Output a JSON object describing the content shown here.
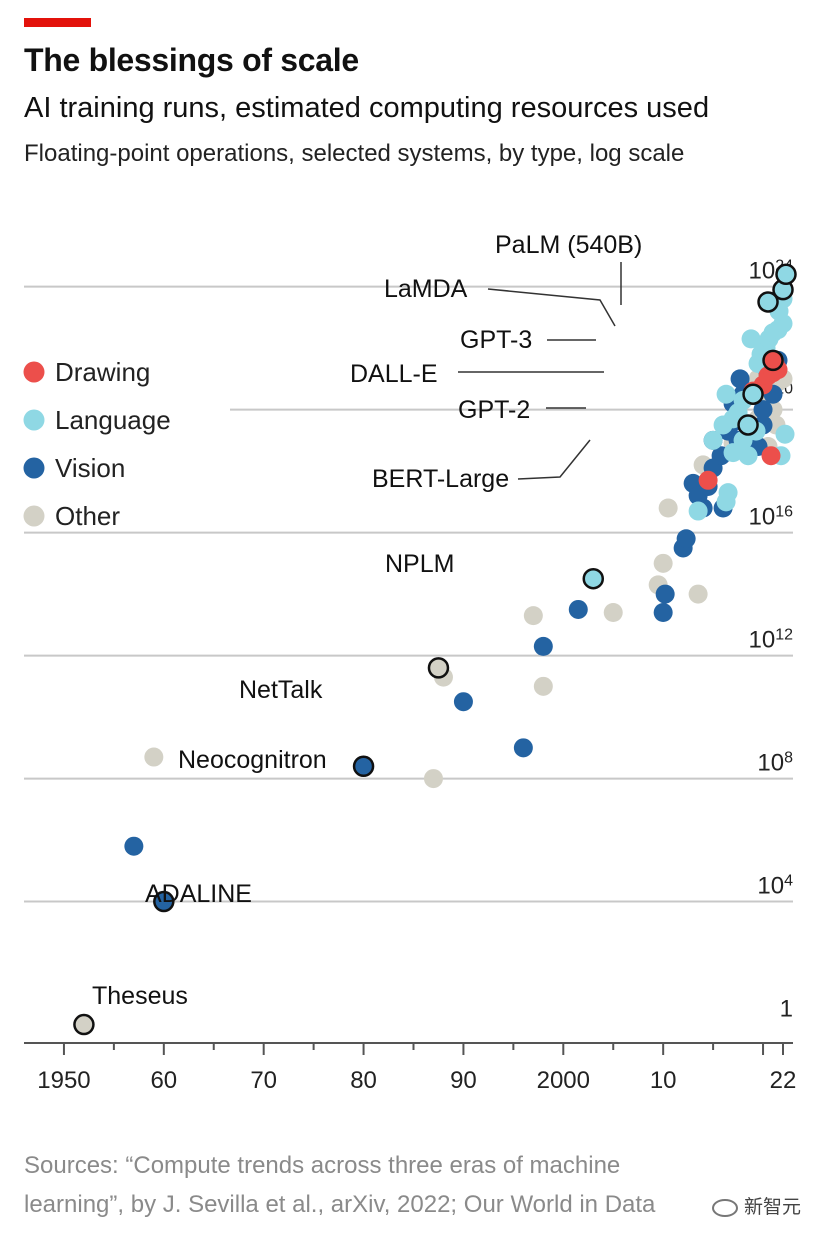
{
  "header": {
    "title": "The blessings of scale",
    "subtitle": "AI training runs, estimated computing resources used",
    "description": "Floating-point operations, selected systems, by type, log scale"
  },
  "footer": {
    "source": "Sources: “Compute trends across three eras of machine learning”, by J. Sevilla et al., arXiv, 2022; Our World in Data",
    "watermark": "新智元"
  },
  "colors": {
    "accent": "#e3120b",
    "Drawing": "#ec4f4b",
    "Language": "#8fd8e4",
    "Vision": "#2463a2",
    "Other": "#d3d1c6",
    "grid": "#c8c8c8",
    "axis": "#555555"
  },
  "chart_data": {
    "type": "scatter",
    "title": "The blessings of scale",
    "subtitle": "AI training runs, estimated computing resources used",
    "ylabel": "Floating-point operations, selected systems, by type, log scale",
    "yscale": "log10",
    "xlim": [
      1946,
      2023
    ],
    "ylim_log10": [
      -0.6,
      24.8
    ],
    "x_ticks": [
      {
        "value": 1950,
        "label": "1950"
      },
      {
        "value": 1960,
        "label": "60"
      },
      {
        "value": 1970,
        "label": "70"
      },
      {
        "value": 1980,
        "label": "80"
      },
      {
        "value": 1990,
        "label": "90"
      },
      {
        "value": 2000,
        "label": "2000"
      },
      {
        "value": 2010,
        "label": "10"
      },
      {
        "value": 2022,
        "label": "22"
      }
    ],
    "y_ticks": [
      {
        "log10": 0,
        "base": "1",
        "exp": ""
      },
      {
        "log10": 4,
        "base": "10",
        "exp": "4"
      },
      {
        "log10": 8,
        "base": "10",
        "exp": "8"
      },
      {
        "log10": 12,
        "base": "10",
        "exp": "12"
      },
      {
        "log10": 16,
        "base": "10",
        "exp": "16"
      },
      {
        "log10": 20,
        "base": "10",
        "exp": "20"
      },
      {
        "log10": 24,
        "base": "10",
        "exp": "24"
      }
    ],
    "legend": {
      "position": "left",
      "entries": [
        "Drawing",
        "Language",
        "Vision",
        "Other"
      ]
    },
    "series": [
      {
        "name": "Drawing",
        "points": [
          [
            2014.5,
            17.7
          ],
          [
            2019.0,
            20.6
          ],
          [
            2020.0,
            20.8
          ],
          [
            2020.5,
            21.1
          ],
          [
            2021.0,
            21.2
          ],
          [
            2021.2,
            21.5
          ],
          [
            2021.5,
            21.3
          ],
          [
            2020.8,
            18.5
          ]
        ]
      },
      {
        "name": "Language",
        "points": [
          [
            2003.0,
            14.5
          ],
          [
            2013.5,
            16.7
          ],
          [
            2016.3,
            17.0
          ],
          [
            2016.5,
            17.3
          ],
          [
            2016.3,
            20.5
          ],
          [
            2015.0,
            19.0
          ],
          [
            2016.0,
            19.5
          ],
          [
            2017.0,
            19.7
          ],
          [
            2017.5,
            19.9
          ],
          [
            2018.0,
            20.3
          ],
          [
            2018.5,
            18.5
          ],
          [
            2019.3,
            19.3
          ],
          [
            2019.5,
            21.5
          ],
          [
            2019.8,
            21.8
          ],
          [
            2020.3,
            22.0
          ],
          [
            2020.6,
            22.3
          ],
          [
            2021.0,
            22.5
          ],
          [
            2021.5,
            22.6
          ],
          [
            2022.0,
            22.8
          ],
          [
            2021.6,
            23.2
          ],
          [
            2022.0,
            23.6
          ],
          [
            2022.2,
            19.2
          ],
          [
            2021.8,
            18.5
          ],
          [
            2018.0,
            19.0
          ],
          [
            2017.0,
            18.6
          ],
          [
            2018.8,
            22.3
          ]
        ]
      },
      {
        "name": "Vision",
        "points": [
          [
            1957.0,
            5.8
          ],
          [
            1960.0,
            4.0
          ],
          [
            1980.0,
            8.4
          ],
          [
            1996.0,
            9.0
          ],
          [
            1990.0,
            10.5
          ],
          [
            1998.0,
            12.3
          ],
          [
            2001.5,
            13.5
          ],
          [
            2010.0,
            13.4
          ],
          [
            2010.2,
            14.0
          ],
          [
            2012.0,
            15.5
          ],
          [
            2012.3,
            15.8
          ],
          [
            2013.0,
            17.6
          ],
          [
            2013.5,
            17.2
          ],
          [
            2014.0,
            16.8
          ],
          [
            2014.5,
            17.5
          ],
          [
            2015.0,
            18.1
          ],
          [
            2015.0,
            19.0
          ],
          [
            2015.8,
            18.5
          ],
          [
            2016.0,
            16.8
          ],
          [
            2016.5,
            19.3
          ],
          [
            2017.0,
            19.6
          ],
          [
            2017.5,
            19.0
          ],
          [
            2017.0,
            20.2
          ],
          [
            2017.7,
            21.0
          ],
          [
            2018.0,
            20.5
          ],
          [
            2019.0,
            19.3
          ],
          [
            2019.5,
            18.8
          ],
          [
            2020.0,
            20.0
          ],
          [
            2020.5,
            21.2
          ],
          [
            2021.0,
            20.5
          ],
          [
            2021.5,
            21.6
          ],
          [
            2020.0,
            19.5
          ]
        ]
      },
      {
        "name": "Other",
        "points": [
          [
            1952.0,
            0.0
          ],
          [
            1959.0,
            8.7
          ],
          [
            1987.0,
            8.0
          ],
          [
            1988.0,
            11.3
          ],
          [
            1997.0,
            13.3
          ],
          [
            1998.0,
            11.0
          ],
          [
            2005.0,
            13.4
          ],
          [
            2009.5,
            14.3
          ],
          [
            2010.0,
            15.0
          ],
          [
            2010.5,
            16.8
          ],
          [
            2013.5,
            14.0
          ],
          [
            2014.0,
            18.2
          ],
          [
            2017.0,
            18.9
          ],
          [
            2018.5,
            19.3
          ],
          [
            2019.5,
            19.7
          ],
          [
            2020.0,
            20.3
          ],
          [
            2020.5,
            18.8
          ],
          [
            2021.0,
            20.0
          ],
          [
            2021.5,
            20.9
          ],
          [
            2022.0,
            21.0
          ],
          [
            2021.3,
            19.5
          ],
          [
            2019.5,
            21.0
          ]
        ]
      }
    ],
    "annotations": [
      {
        "label": "Theseus",
        "category": "Other",
        "x": 1952.0,
        "y_log10": 0.0
      },
      {
        "label": "ADALINE",
        "category": "Vision",
        "x": 1960.0,
        "y_log10": 4.0
      },
      {
        "label": "Neocognitron",
        "category": "Vision",
        "x": 1980.0,
        "y_log10": 8.4
      },
      {
        "label": "NetTalk",
        "category": "Other",
        "x": 1987.5,
        "y_log10": 11.6
      },
      {
        "label": "NPLM",
        "category": "Language",
        "x": 2003.0,
        "y_log10": 14.5
      },
      {
        "label": "BERT-Large",
        "category": "Language",
        "x": 2018.5,
        "y_log10": 19.5
      },
      {
        "label": "GPT-2",
        "category": "Language",
        "x": 2019.0,
        "y_log10": 20.5
      },
      {
        "label": "GPT-3",
        "category": "Language",
        "x": 2020.5,
        "y_log10": 23.5
      },
      {
        "label": "DALL-E",
        "category": "Drawing",
        "x": 2021.0,
        "y_log10": 21.6
      },
      {
        "label": "LaMDA",
        "category": "Language",
        "x": 2022.0,
        "y_log10": 23.9
      },
      {
        "label": "PaLM (540B)",
        "category": "Language",
        "x": 2022.3,
        "y_log10": 24.4
      }
    ]
  }
}
